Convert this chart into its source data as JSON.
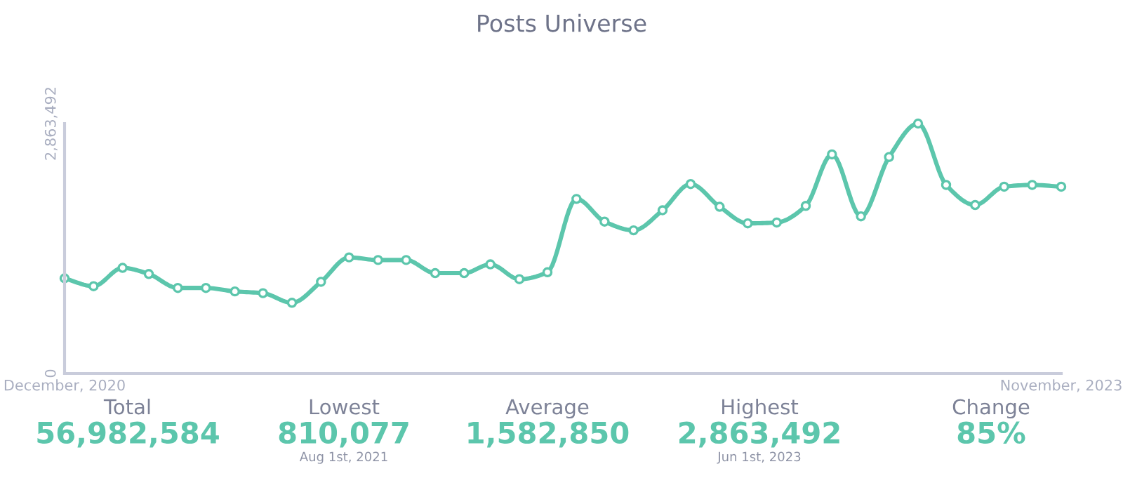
{
  "chart_data": {
    "type": "line",
    "title": "Posts Universe",
    "x": [
      "2020-12",
      "2021-01",
      "2021-02",
      "2021-03",
      "2021-04",
      "2021-05",
      "2021-06",
      "2021-07",
      "2021-08",
      "2021-09",
      "2021-10",
      "2021-11",
      "2021-12",
      "2022-01",
      "2022-02",
      "2022-03",
      "2022-04",
      "2022-05",
      "2022-06",
      "2022-07",
      "2022-08",
      "2022-09",
      "2022-10",
      "2022-11",
      "2022-12",
      "2023-01",
      "2023-02",
      "2023-03",
      "2023-04",
      "2023-05",
      "2023-06",
      "2023-07",
      "2023-08",
      "2023-09",
      "2023-10",
      "2023-11"
    ],
    "series": [
      {
        "color": "#5cc6ac",
        "values": [
          1090000,
          1000000,
          1210000,
          1140000,
          980000,
          980000,
          940000,
          920000,
          810077,
          1050000,
          1330000,
          1300000,
          1300000,
          1150000,
          1150000,
          1250000,
          1080000,
          1160000,
          2000000,
          1740000,
          1640000,
          1870000,
          2170000,
          1910000,
          1720000,
          1730000,
          1920000,
          2510000,
          1800000,
          2480000,
          2863492,
          2160000,
          1930000,
          2140000,
          2160000,
          2140000
        ]
      }
    ],
    "xlim": [
      "2020-12",
      "2023-11"
    ],
    "xticks": [
      {
        "value": "2020-12",
        "label": "December, 2020"
      },
      {
        "value": "2023-11",
        "label": "November, 2023"
      }
    ],
    "ylim": [
      0,
      2863492
    ],
    "yticks": [
      {
        "value": 0,
        "label": "0"
      },
      {
        "value": 2863492,
        "label": "2,863,492"
      }
    ],
    "marker": "circle",
    "line_style": "solid",
    "grid": false,
    "legend": false,
    "annotations": [
      "Total",
      "56,982,584",
      "Lowest",
      "810,077",
      "Aug 1st, 2021",
      "Average",
      "1,582,850",
      "Highest",
      "2,863,492",
      "Jun 1st, 2023",
      "Change",
      "85%"
    ]
  }
}
